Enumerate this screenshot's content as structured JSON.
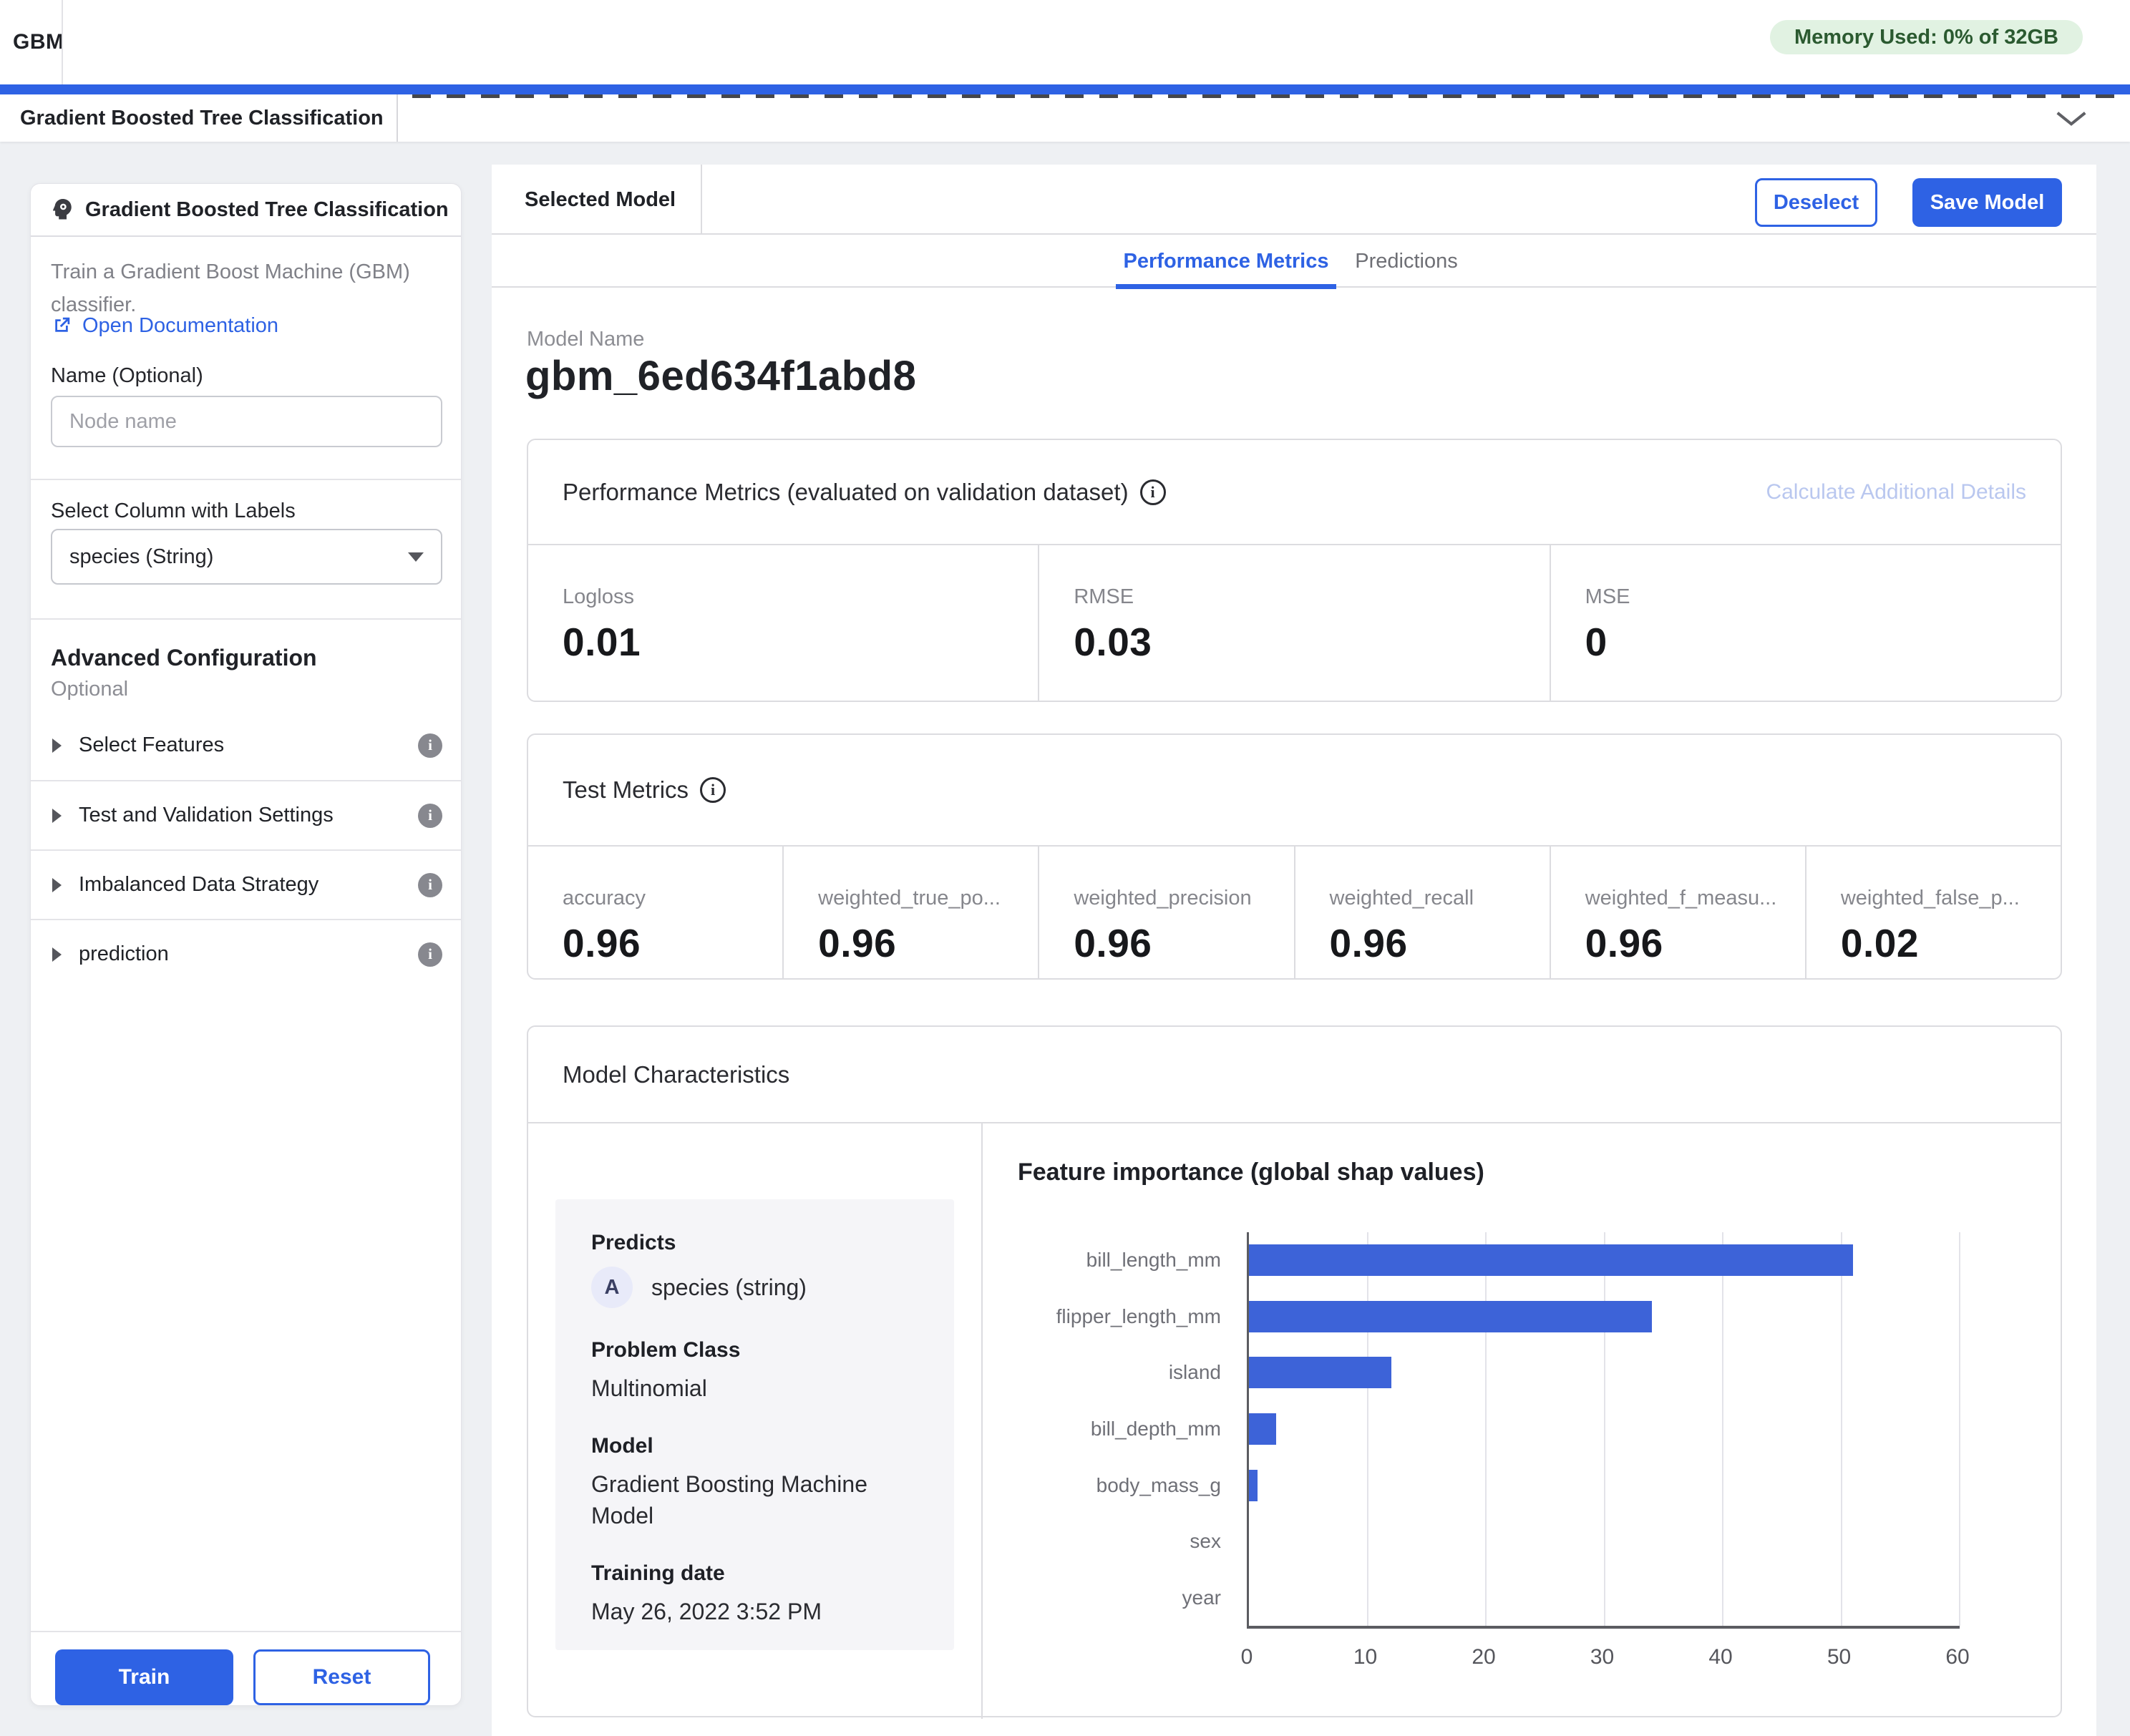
{
  "colors": {
    "accent": "#2e62e4",
    "bar": "#3d63d8",
    "badge_bg": "#e1f2e2",
    "badge_text": "#2b5a30"
  },
  "app": {
    "title": "GBM",
    "memory_badge": "Memory Used: 0% of 32GB"
  },
  "workflow_tab": {
    "label": "Gradient Boosted Tree Classification"
  },
  "sidebar": {
    "title": "Gradient Boosted Tree Classification",
    "description": "Train a Gradient Boost Machine (GBM) classifier.",
    "doc_link": "Open Documentation",
    "name_label": "Name (Optional)",
    "name_placeholder": "Node name",
    "label_column_label": "Select Column with Labels",
    "label_column_value": "species (String)",
    "advanced_title": "Advanced Configuration",
    "advanced_subtitle": "Optional",
    "sections": [
      {
        "label": "Select Features"
      },
      {
        "label": "Test and Validation Settings"
      },
      {
        "label": "Imbalanced Data Strategy"
      },
      {
        "label": "prediction"
      }
    ],
    "train_button": "Train",
    "reset_button": "Reset"
  },
  "main": {
    "selected_model_label": "Selected Model",
    "deselect_button": "Deselect",
    "save_model_button": "Save Model",
    "tabs": [
      {
        "label": "Performance Metrics",
        "active": true
      },
      {
        "label": "Predictions",
        "active": false
      }
    ],
    "model_name_label": "Model Name",
    "model_name": "gbm_6ed634f1abd8",
    "perf_card": {
      "title": "Performance Metrics (evaluated on validation dataset)",
      "action": "Calculate Additional Details",
      "cells": [
        {
          "label": "Logloss",
          "value": "0.01"
        },
        {
          "label": "RMSE",
          "value": "0.03"
        },
        {
          "label": "MSE",
          "value": "0"
        }
      ]
    },
    "test_card": {
      "title": "Test Metrics",
      "cells": [
        {
          "label": "accuracy",
          "value": "0.96"
        },
        {
          "label": "weighted_true_po...",
          "value": "0.96"
        },
        {
          "label": "weighted_precision",
          "value": "0.96"
        },
        {
          "label": "weighted_recall",
          "value": "0.96"
        },
        {
          "label": "weighted_f_measu...",
          "value": "0.96"
        },
        {
          "label": "weighted_false_p...",
          "value": "0.02"
        }
      ]
    },
    "characteristics_card": {
      "title": "Model Characteristics",
      "predicts_label": "Predicts",
      "predicts_type_badge": "A",
      "predicts_value": "species (string)",
      "problem_class_label": "Problem Class",
      "problem_class_value": "Multinomial",
      "model_label": "Model",
      "model_value": "Gradient Boosting Machine Model",
      "training_date_label": "Training date",
      "training_date_value": "May 26, 2022 3:52 PM"
    }
  },
  "chart_data": {
    "type": "bar",
    "orientation": "horizontal",
    "title": "Feature importance (global shap values)",
    "categories": [
      "bill_length_mm",
      "flipper_length_mm",
      "island",
      "bill_depth_mm",
      "body_mass_g",
      "sex",
      "year"
    ],
    "values": [
      51,
      34,
      12,
      2.3,
      0.7,
      0,
      0
    ],
    "xlabel": "",
    "ylabel": "",
    "xlim": [
      0,
      60
    ],
    "xticks": [
      0,
      10,
      20,
      30,
      40,
      50,
      60
    ],
    "grid": true,
    "legend": false
  }
}
